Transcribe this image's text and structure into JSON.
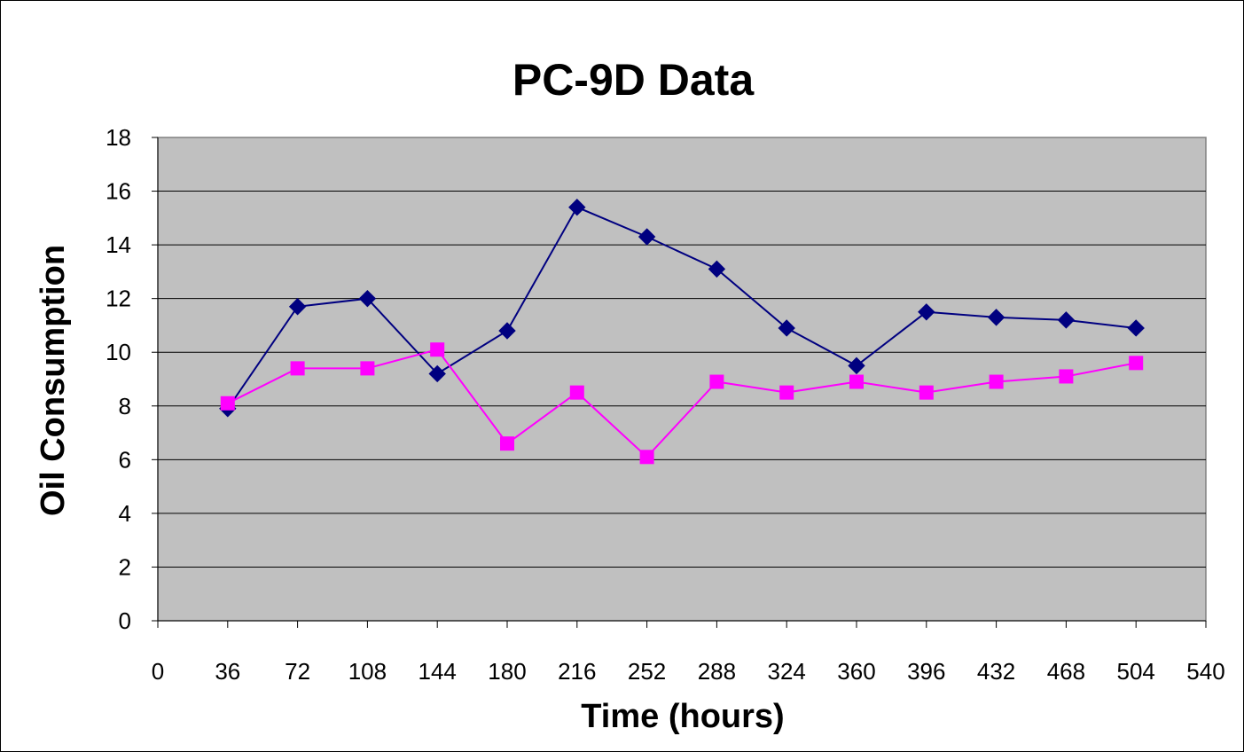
{
  "chart_data": {
    "type": "line",
    "title": "PC-9D Data",
    "xlabel": "Time (hours)",
    "ylabel": "Oil Consumption",
    "xlim": [
      0,
      540
    ],
    "ylim": [
      0,
      18
    ],
    "x_ticks": [
      "0",
      "36",
      "72",
      "108",
      "144",
      "180",
      "216",
      "252",
      "288",
      "324",
      "360",
      "396",
      "432",
      "468",
      "504",
      "540"
    ],
    "y_ticks": [
      "0",
      "2",
      "4",
      "6",
      "8",
      "10",
      "12",
      "14",
      "16",
      "18"
    ],
    "grid": true,
    "legend": "none",
    "plot_background": "#C0C0C0",
    "series": [
      {
        "color": "#000080",
        "marker": "diamond",
        "x": [
          36,
          72,
          108,
          144,
          180,
          216,
          252,
          288,
          324,
          360,
          396,
          432,
          468,
          504
        ],
        "values": [
          7.9,
          11.7,
          12.0,
          9.2,
          10.8,
          15.4,
          14.3,
          13.1,
          10.9,
          9.5,
          11.5,
          11.3,
          11.2,
          10.9
        ]
      },
      {
        "color": "#FF00FF",
        "marker": "square",
        "x": [
          36,
          72,
          108,
          144,
          180,
          216,
          252,
          288,
          324,
          360,
          396,
          432,
          468,
          504
        ],
        "values": [
          8.1,
          9.4,
          9.4,
          10.1,
          6.6,
          8.5,
          6.1,
          8.9,
          8.5,
          8.9,
          8.5,
          8.9,
          9.1,
          9.6
        ]
      }
    ]
  }
}
